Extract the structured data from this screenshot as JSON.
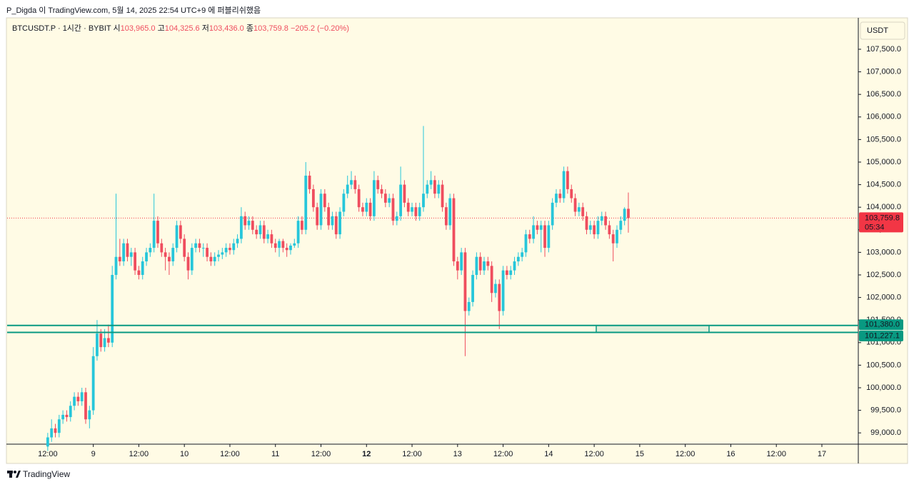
{
  "header": "P_Digda 이 TradingView.com, 5월 14, 2025 22:54 UTC+9 에 퍼블리쉬했음",
  "footer": "TradingView",
  "chart_data": {
    "type": "candlestick",
    "symbol": "BTCUSDT.P · 1시간 · BYBIT",
    "legend": {
      "open_label": "시",
      "open": "103,965.0",
      "high_label": "고",
      "high": "104,325.6",
      "low_label": "저",
      "low": "103,436.0",
      "close_label": "종",
      "close": "103,759.8",
      "change": "−205.2 (−0.20%)"
    },
    "currency": "USDT",
    "up_color": "#26c6da",
    "down_color": "#ef4d5e",
    "ylim": [
      98750,
      108180
    ],
    "yticks": [
      {
        "value": 99000,
        "label": "99,000.0"
      },
      {
        "value": 99500,
        "label": "99,500.0"
      },
      {
        "value": 100000,
        "label": "100,000.0"
      },
      {
        "value": 100500,
        "label": "100,500.0"
      },
      {
        "value": 101000,
        "label": "101,000.0"
      },
      {
        "value": 101500,
        "label": "101,500.0"
      },
      {
        "value": 102000,
        "label": "102,000.0"
      },
      {
        "value": 102500,
        "label": "102,500.0"
      },
      {
        "value": 103000,
        "label": "103,000.0"
      },
      {
        "value": 103500,
        "label": "103,500.0"
      },
      {
        "value": 104000,
        "label": "104,000.0"
      },
      {
        "value": 104500,
        "label": "104,500.0"
      },
      {
        "value": 105000,
        "label": "105,000.0"
      },
      {
        "value": 105500,
        "label": "105,500.0"
      },
      {
        "value": 106000,
        "label": "106,000.0"
      },
      {
        "value": 106500,
        "label": "106,500.0"
      },
      {
        "value": 107000,
        "label": "107,000.0"
      },
      {
        "value": 107500,
        "label": "107,500.0"
      }
    ],
    "xlim": [
      -10.7,
      213.6
    ],
    "xticks": [
      {
        "value": 0,
        "label": "12:00"
      },
      {
        "value": 12,
        "label": "9"
      },
      {
        "value": 24,
        "label": "12:00"
      },
      {
        "value": 36,
        "label": "10"
      },
      {
        "value": 48,
        "label": "12:00"
      },
      {
        "value": 60,
        "label": "11"
      },
      {
        "value": 72,
        "label": "12:00"
      },
      {
        "value": 84,
        "label": "12"
      },
      {
        "value": 96,
        "label": "12:00"
      },
      {
        "value": 108,
        "label": "13"
      },
      {
        "value": 120,
        "label": "12:00"
      },
      {
        "value": 132,
        "label": "14"
      },
      {
        "value": 144,
        "label": "12:00"
      },
      {
        "value": 156,
        "label": "15"
      },
      {
        "value": 168,
        "label": "12:00"
      },
      {
        "value": 180,
        "label": "16"
      },
      {
        "value": 192,
        "label": "12:00"
      },
      {
        "value": 204,
        "label": "17"
      }
    ],
    "hlines": [
      {
        "value": 101380.0,
        "label": "101,380.0",
        "color": "#089981"
      },
      {
        "value": 101227.1,
        "label": "101,227.1",
        "color": "#089981"
      }
    ],
    "last_price": {
      "value": 103759.8,
      "label": "103,759.8",
      "countdown": "05:34",
      "color": "#f23645"
    },
    "ohlc": [
      [
        98700,
        99000,
        98600,
        98900
      ],
      [
        98900,
        99300,
        98800,
        99100
      ],
      [
        99100,
        99200,
        98900,
        99000
      ],
      [
        99000,
        99400,
        98900,
        99300
      ],
      [
        99300,
        99500,
        99200,
        99400
      ],
      [
        99400,
        99500,
        99250,
        99350
      ],
      [
        99350,
        99700,
        99250,
        99600
      ],
      [
        99600,
        99900,
        99500,
        99800
      ],
      [
        99800,
        99900,
        99600,
        99700
      ],
      [
        99700,
        100000,
        99600,
        99900
      ],
      [
        99900,
        100000,
        99200,
        99300
      ],
      [
        99300,
        99600,
        99100,
        99500
      ],
      [
        99500,
        100900,
        99400,
        100700
      ],
      [
        100700,
        101500,
        100600,
        101200
      ],
      [
        101200,
        101300,
        100800,
        100900
      ],
      [
        100900,
        101300,
        100800,
        101100
      ],
      [
        101100,
        101400,
        100900,
        101000
      ],
      [
        101000,
        102700,
        100900,
        102500
      ],
      [
        102500,
        104300,
        102400,
        102900
      ],
      [
        102900,
        103300,
        102700,
        102800
      ],
      [
        102800,
        103300,
        102700,
        103200
      ],
      [
        103200,
        103300,
        102800,
        102900
      ],
      [
        102900,
        103100,
        102700,
        103000
      ],
      [
        103000,
        103100,
        102500,
        102600
      ],
      [
        102600,
        102700,
        102400,
        102500
      ],
      [
        102500,
        102900,
        102400,
        102800
      ],
      [
        102800,
        103100,
        102700,
        103000
      ],
      [
        103000,
        103200,
        102900,
        103100
      ],
      [
        103100,
        104300,
        103000,
        103700
      ],
      [
        103700,
        103800,
        103100,
        103200
      ],
      [
        103200,
        103300,
        102900,
        103000
      ],
      [
        103000,
        103100,
        102600,
        102900
      ],
      [
        102900,
        103000,
        102500,
        102800
      ],
      [
        102800,
        103200,
        102700,
        103100
      ],
      [
        103100,
        103700,
        103000,
        103600
      ],
      [
        103600,
        103700,
        103200,
        103300
      ],
      [
        103300,
        103400,
        102800,
        102900
      ],
      [
        102900,
        103000,
        102400,
        102600
      ],
      [
        102600,
        103200,
        102500,
        103100
      ],
      [
        103100,
        103300,
        103000,
        103200
      ],
      [
        103200,
        103300,
        103000,
        103100
      ],
      [
        103100,
        103200,
        102900,
        103100
      ],
      [
        103100,
        103200,
        102800,
        102900
      ],
      [
        102900,
        103000,
        102700,
        102800
      ],
      [
        102800,
        103000,
        102700,
        102900
      ],
      [
        102900,
        103050,
        102800,
        102950
      ],
      [
        102950,
        103100,
        102850,
        103000
      ],
      [
        103000,
        103200,
        102900,
        103100
      ],
      [
        103100,
        103200,
        102950,
        103050
      ],
      [
        103050,
        103300,
        102950,
        103200
      ],
      [
        103200,
        103400,
        103100,
        103300
      ],
      [
        103300,
        104000,
        103200,
        103800
      ],
      [
        103800,
        103900,
        103500,
        103600
      ],
      [
        103600,
        103800,
        103500,
        103700
      ],
      [
        103700,
        103800,
        103400,
        103500
      ],
      [
        103500,
        103600,
        103300,
        103400
      ],
      [
        103400,
        103700,
        103300,
        103600
      ],
      [
        103600,
        103700,
        103200,
        103300
      ],
      [
        103300,
        103500,
        103200,
        103400
      ],
      [
        103400,
        103500,
        103100,
        103200
      ],
      [
        103200,
        103300,
        103000,
        103100
      ],
      [
        103100,
        103300,
        102900,
        103250
      ],
      [
        103250,
        103300,
        103000,
        103100
      ],
      [
        103100,
        103200,
        102900,
        103050
      ],
      [
        103050,
        103200,
        102950,
        103150
      ],
      [
        103150,
        103300,
        103100,
        103200
      ],
      [
        103200,
        103800,
        103100,
        103700
      ],
      [
        103700,
        103800,
        103400,
        103500
      ],
      [
        103500,
        105000,
        103400,
        104700
      ],
      [
        104700,
        104800,
        104300,
        104400
      ],
      [
        104400,
        104500,
        103900,
        104000
      ],
      [
        104000,
        104100,
        103500,
        103600
      ],
      [
        103600,
        104400,
        103500,
        104300
      ],
      [
        104300,
        104400,
        103900,
        104000
      ],
      [
        104000,
        104100,
        103500,
        103600
      ],
      [
        103600,
        103900,
        103500,
        103800
      ],
      [
        103800,
        103900,
        103300,
        103400
      ],
      [
        103400,
        104000,
        103300,
        103900
      ],
      [
        103900,
        104400,
        103800,
        104300
      ],
      [
        104300,
        104700,
        104200,
        104500
      ],
      [
        104500,
        104800,
        104400,
        104600
      ],
      [
        104600,
        104700,
        104300,
        104400
      ],
      [
        104400,
        104500,
        103900,
        104000
      ],
      [
        104000,
        104100,
        103800,
        103900
      ],
      [
        103900,
        104200,
        103800,
        104100
      ],
      [
        104100,
        104200,
        103700,
        103800
      ],
      [
        103800,
        104800,
        103700,
        104600
      ],
      [
        104600,
        104700,
        104300,
        104400
      ],
      [
        104400,
        104500,
        104200,
        104300
      ],
      [
        104300,
        104400,
        104000,
        104100
      ],
      [
        104100,
        104300,
        104000,
        104200
      ],
      [
        104200,
        104300,
        103600,
        103700
      ],
      [
        103700,
        103900,
        103600,
        103800
      ],
      [
        103800,
        104900,
        103700,
        104500
      ],
      [
        104500,
        104600,
        104000,
        104100
      ],
      [
        104100,
        104200,
        103800,
        103900
      ],
      [
        103900,
        104100,
        103800,
        104000
      ],
      [
        104000,
        104100,
        103700,
        103800
      ],
      [
        103800,
        104100,
        103700,
        104000
      ],
      [
        104000,
        105800,
        103900,
        104300
      ],
      [
        104300,
        104600,
        104200,
        104500
      ],
      [
        104500,
        104800,
        104400,
        104600
      ],
      [
        104600,
        104700,
        104200,
        104300
      ],
      [
        104300,
        104600,
        104200,
        104500
      ],
      [
        104500,
        104600,
        103900,
        104000
      ],
      [
        104000,
        104100,
        103500,
        103600
      ],
      [
        103600,
        104300,
        103500,
        104200
      ],
      [
        104200,
        104300,
        102700,
        102800
      ],
      [
        102800,
        102900,
        102400,
        102600
      ],
      [
        102600,
        103100,
        102500,
        103000
      ],
      [
        103000,
        103100,
        100700,
        101700
      ],
      [
        101700,
        102000,
        101600,
        101900
      ],
      [
        101900,
        102600,
        101800,
        102500
      ],
      [
        102500,
        103000,
        102400,
        102900
      ],
      [
        102900,
        103000,
        102500,
        102600
      ],
      [
        102600,
        102900,
        102500,
        102800
      ],
      [
        102800,
        102900,
        102600,
        102700
      ],
      [
        102700,
        102800,
        101900,
        102100
      ],
      [
        102100,
        102400,
        102000,
        102300
      ],
      [
        102300,
        102400,
        101300,
        101700
      ],
      [
        101700,
        102700,
        101600,
        102600
      ],
      [
        102600,
        102700,
        102400,
        102500
      ],
      [
        102500,
        102700,
        102400,
        102600
      ],
      [
        102600,
        102900,
        102500,
        102800
      ],
      [
        102800,
        103000,
        102700,
        102900
      ],
      [
        102900,
        103100,
        102800,
        103000
      ],
      [
        103000,
        103500,
        102900,
        103400
      ],
      [
        103400,
        103500,
        103200,
        103300
      ],
      [
        103300,
        103800,
        103200,
        103600
      ],
      [
        103600,
        103700,
        103400,
        103500
      ],
      [
        103500,
        103700,
        103000,
        103600
      ],
      [
        103600,
        103700,
        102900,
        103100
      ],
      [
        103100,
        103700,
        103000,
        103600
      ],
      [
        103600,
        104200,
        103500,
        104100
      ],
      [
        104100,
        104400,
        104000,
        104300
      ],
      [
        104300,
        104400,
        104100,
        104200
      ],
      [
        104200,
        104900,
        104100,
        104800
      ],
      [
        104800,
        104900,
        104300,
        104400
      ],
      [
        104400,
        104500,
        104100,
        104200
      ],
      [
        104200,
        104300,
        103800,
        103900
      ],
      [
        103900,
        104100,
        103800,
        104000
      ],
      [
        104000,
        104100,
        103700,
        103800
      ],
      [
        103800,
        103900,
        103400,
        103500
      ],
      [
        103500,
        103700,
        103400,
        103600
      ],
      [
        103600,
        103700,
        103300,
        103400
      ],
      [
        103400,
        103800,
        103300,
        103700
      ],
      [
        103700,
        103900,
        103600,
        103800
      ],
      [
        103800,
        103900,
        103500,
        103600
      ],
      [
        103600,
        103700,
        103300,
        103400
      ],
      [
        103400,
        103500,
        102800,
        103200
      ],
      [
        103200,
        103600,
        103100,
        103500
      ],
      [
        103500,
        103800,
        103400,
        103700
      ],
      [
        103700,
        104000,
        103600,
        103965
      ],
      [
        103965,
        104325.6,
        103436,
        103759.8
      ]
    ]
  }
}
